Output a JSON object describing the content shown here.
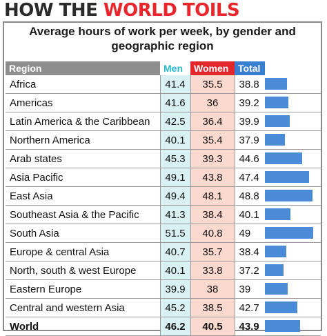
{
  "headline": {
    "part1": "HOW THE ",
    "part2": "WORLD TOILS"
  },
  "subtitle_line1": "Average hours of work per week, by gender and",
  "subtitle_line2": "geographic region",
  "colors": {
    "men_header": "#28b8c8",
    "women_header": "#e3262b",
    "total_header": "#3b7fd0",
    "bar": "#4a8ad6"
  },
  "chart_data": {
    "type": "table",
    "columns": [
      "Region",
      "Men",
      "Women",
      "Total"
    ],
    "rows": [
      {
        "region": "Africa",
        "men": "41.4",
        "women": "35.5",
        "total": "38.8"
      },
      {
        "region": "Americas",
        "men": "41.6",
        "women": "36",
        "total": "39.2"
      },
      {
        "region": "Latin America & the Caribbean",
        "men": "42.5",
        "women": "36.4",
        "total": "39.9"
      },
      {
        "region": "Northern America",
        "men": "40.1",
        "women": "35.4",
        "total": "37.9"
      },
      {
        "region": "Arab states",
        "men": "45.3",
        "women": "39.3",
        "total": "44.6"
      },
      {
        "region": "Asia Pacific",
        "men": "49.1",
        "women": "43.8",
        "total": "47.4"
      },
      {
        "region": "East Asia",
        "men": "49.4",
        "women": "48.1",
        "total": "48.8"
      },
      {
        "region": "Southeast Asia & the Pacific",
        "men": "41.3",
        "women": "38.4",
        "total": "40.1"
      },
      {
        "region": "South Asia",
        "men": "51.5",
        "women": "40.8",
        "total": "49"
      },
      {
        "region": "Europe & central Asia",
        "men": "40.7",
        "women": "35.7",
        "total": "38.4"
      },
      {
        "region": "North, south & west Europe",
        "men": "40.1",
        "women": "33.8",
        "total": "37.2"
      },
      {
        "region": "Eastern Europe",
        "men": "39.9",
        "women": "38",
        "total": "39"
      },
      {
        "region": "Central and western Asia",
        "men": "45.2",
        "women": "38.5",
        "total": "42.7"
      },
      {
        "region": "World",
        "men": "46.2",
        "women": "40.5",
        "total": "43.9"
      }
    ]
  }
}
